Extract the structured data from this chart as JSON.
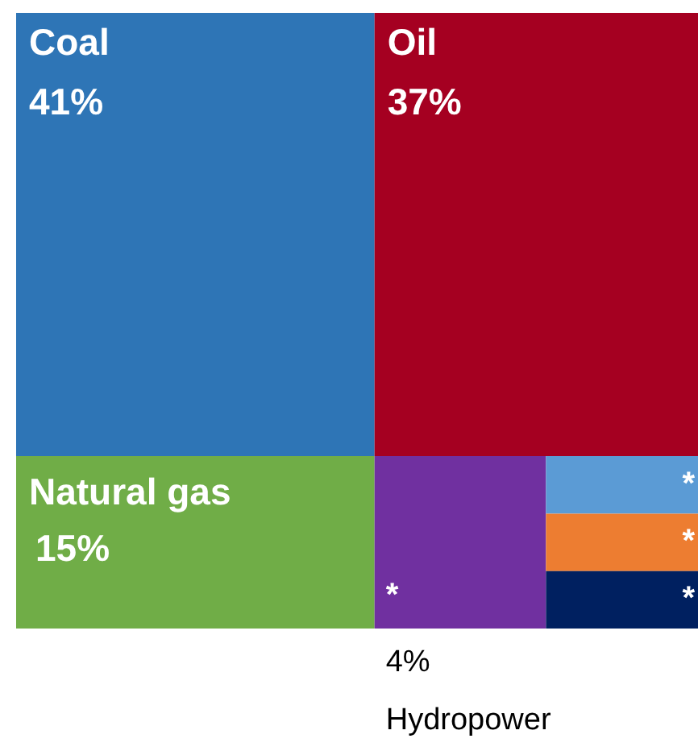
{
  "chart_data": {
    "type": "other",
    "categories": [
      "Coal",
      "Oil",
      "Natural gas",
      "Hydropower",
      null,
      null,
      null
    ],
    "values": [
      41,
      37,
      15,
      4,
      null,
      null,
      null
    ],
    "value_labels": [
      "41%",
      "37%",
      "15%",
      "4%",
      null,
      null,
      null
    ],
    "colors": [
      "#2e75b6",
      "#a50021",
      "#70ad47",
      "#7030a0",
      "#5b9bd5",
      "#ed7d31",
      "#002060"
    ],
    "annotations": [
      "*",
      "*",
      "*",
      "*"
    ]
  }
}
